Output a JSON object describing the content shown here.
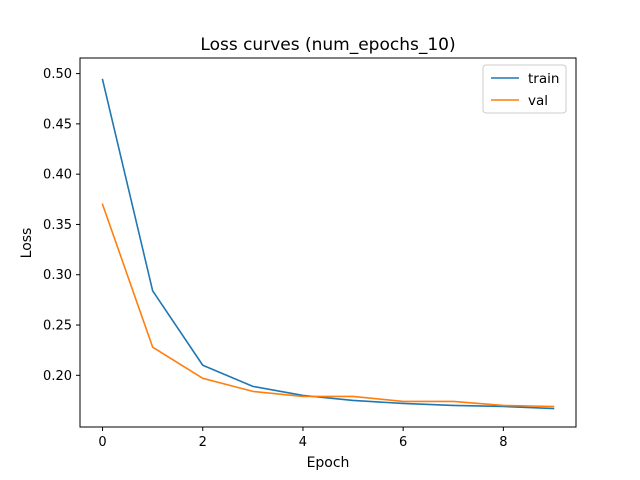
{
  "chart_data": {
    "type": "line",
    "title": "Loss curves (num_epochs_10)",
    "xlabel": "Epoch",
    "ylabel": "Loss",
    "x": [
      0,
      1,
      2,
      3,
      4,
      5,
      6,
      7,
      8,
      9
    ],
    "xlim": [
      -0.45,
      9.45
    ],
    "ylim": [
      0.1486,
      0.5155
    ],
    "xticks": [
      0,
      2,
      4,
      6,
      8
    ],
    "yticks": [
      0.2,
      0.25,
      0.3,
      0.35,
      0.4,
      0.45,
      0.5
    ],
    "ytick_labels": [
      "0.20",
      "0.25",
      "0.30",
      "0.35",
      "0.40",
      "0.45",
      "0.50"
    ],
    "grid": false,
    "legend_position": "top-right",
    "series": [
      {
        "name": "train",
        "color": "#1f77b4",
        "values": [
          0.494,
          0.284,
          0.21,
          0.189,
          0.18,
          0.175,
          0.172,
          0.17,
          0.169,
          0.167
        ]
      },
      {
        "name": "val",
        "color": "#ff7f0e",
        "values": [
          0.37,
          0.228,
          0.197,
          0.184,
          0.179,
          0.179,
          0.174,
          0.174,
          0.17,
          0.169
        ]
      }
    ]
  }
}
